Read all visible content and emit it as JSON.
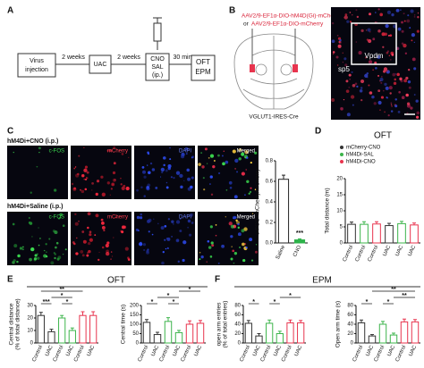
{
  "panel_a": {
    "label": "A",
    "virus": [
      "Virus",
      "injection"
    ],
    "interval1": "2 weeks",
    "uac": "UAC",
    "interval2": "2 weeks",
    "treatment": [
      "CNO",
      "SAL",
      "(ip.)"
    ],
    "interval3": "30 min",
    "tests": [
      "OFT",
      "EPM"
    ]
  },
  "panel_b": {
    "label": "B",
    "virus1": "AAV2/9-EF1α-DIO-hM4D(Gi)-mCherry",
    "conjunction": "or",
    "virus2": "AAV2/9-EF1α-DIO-mCherry",
    "mouse": "VGLUT1-IRES-Cre",
    "region": "Vpdm",
    "landmark": "sp5"
  },
  "panel_c": {
    "label": "C",
    "row1": "hM4Di+CNO (i.p.)",
    "row2": "hM4Di+Saline (i.p.)",
    "channels": [
      "c-FOS",
      "mCherry",
      "DAPI",
      "Merged"
    ]
  },
  "panel_d": {
    "label": "D"
  },
  "panel_e": {
    "label": "E",
    "title": "OFT"
  },
  "panel_f": {
    "label": "F",
    "title": "EPM"
  },
  "chart_data": [
    {
      "type": "bar",
      "ylabel": "c-FOS+mCherry/mCherry",
      "categories": [
        "Saline",
        "CNO"
      ],
      "values": [
        0.62,
        0.03
      ],
      "errors": [
        0.04,
        0.01
      ],
      "colors": [
        "#222222",
        "#2db34a"
      ],
      "ylim": [
        0,
        0.8
      ],
      "yticks": [
        {
          "value": 0,
          "label": "0.0"
        },
        0.2,
        0.4,
        0.6,
        0.8
      ],
      "annotations": [
        "***"
      ]
    },
    {
      "type": "bar",
      "title": "OFT",
      "ylabel": "Total distance (m)",
      "categories": [
        "Control",
        "UAC"
      ],
      "series": [
        {
          "name": "mCherry-CNO",
          "color": "#333333",
          "values": [
            5.8,
            5.4
          ],
          "errors": [
            0.7,
            0.7
          ]
        },
        {
          "name": "hM4Di-SAL",
          "color": "#3cb44b",
          "values": [
            5.8,
            6.0
          ],
          "errors": [
            0.8,
            0.7
          ]
        },
        {
          "name": "hM4Di-CNO",
          "color": "#e8344e",
          "values": [
            5.9,
            5.6
          ],
          "errors": [
            0.7,
            0.6
          ]
        }
      ],
      "ylim": [
        0,
        20
      ],
      "yticks": [
        0,
        5,
        10,
        15,
        20
      ],
      "legend": "upper left"
    },
    {
      "type": "bar",
      "ylabel": [
        "Central distance",
        "(% of total distance)"
      ],
      "categories": [
        "Control",
        "UAC",
        "Control",
        "UAC",
        "Control",
        "UAC"
      ],
      "values": [
        22,
        9,
        20,
        10,
        22,
        22
      ],
      "errors": [
        2.5,
        2,
        2,
        2,
        3,
        3
      ],
      "colors": [
        "#333333",
        "#333333",
        "#3cb44b",
        "#3cb44b",
        "#e8344e",
        "#e8344e"
      ],
      "ylim": [
        0,
        30
      ],
      "yticks": [
        0,
        10,
        20,
        30
      ],
      "annotations": [
        "***",
        "*",
        "*",
        "**"
      ]
    },
    {
      "type": "bar",
      "ylabel": "Central time (s)",
      "categories": [
        "Control",
        "UAC",
        "Control",
        "UAC",
        "Control",
        "UAC"
      ],
      "values": [
        110,
        45,
        115,
        55,
        100,
        105
      ],
      "errors": [
        15,
        12,
        20,
        12,
        18,
        15
      ],
      "colors": [
        "#333333",
        "#333333",
        "#3cb44b",
        "#3cb44b",
        "#e8344e",
        "#e8344e"
      ],
      "ylim": [
        0,
        200
      ],
      "yticks": [
        0,
        50,
        100,
        150,
        200
      ],
      "annotations": [
        "*",
        "*",
        "*",
        "*"
      ]
    },
    {
      "type": "bar",
      "ylabel": [
        "open arm entries",
        "(% of total entries)"
      ],
      "categories": [
        "Control",
        "UAC",
        "Control",
        "UAC",
        "Control",
        "UAC"
      ],
      "values": [
        42,
        15,
        42,
        20,
        43,
        43
      ],
      "errors": [
        6,
        5,
        7,
        5,
        6,
        5
      ],
      "colors": [
        "#333333",
        "#333333",
        "#3cb44b",
        "#3cb44b",
        "#e8344e",
        "#e8344e"
      ],
      "ylim": [
        0,
        80
      ],
      "yticks": [
        0,
        20,
        40,
        60,
        80
      ],
      "annotations": [
        "*",
        "*",
        "*"
      ]
    },
    {
      "type": "bar",
      "ylabel": "Open arm time (s)",
      "categories": [
        "Control",
        "UAC",
        "Control",
        "UAC",
        "Control",
        "UAC"
      ],
      "values": [
        43,
        15,
        40,
        17,
        45,
        45
      ],
      "errors": [
        6,
        3,
        6,
        4,
        6,
        5
      ],
      "colors": [
        "#333333",
        "#333333",
        "#3cb44b",
        "#3cb44b",
        "#e8344e",
        "#e8344e"
      ],
      "ylim": [
        0,
        80
      ],
      "yticks": [
        0,
        20,
        40,
        60,
        80
      ],
      "annotations": [
        "*",
        "*",
        "**",
        "**"
      ]
    }
  ]
}
